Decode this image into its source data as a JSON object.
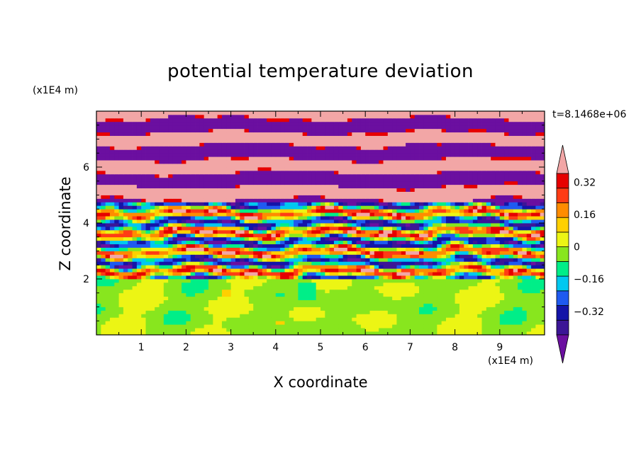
{
  "chart_data": {
    "type": "heatmap",
    "title": "potential temperature deviation",
    "xlabel": "X coordinate",
    "ylabel": "Z coordinate",
    "x_unit": "(x1E4 m)",
    "y_unit": "(x1E4 m)",
    "time_label": "t=8.1468e+06",
    "xlim": [
      0,
      10
    ],
    "ylim": [
      0,
      8
    ],
    "x_ticks": [
      "1",
      "2",
      "3",
      "4",
      "5",
      "6",
      "7",
      "8",
      "9"
    ],
    "y_ticks": [
      "2",
      "4",
      "6"
    ],
    "colorbar": {
      "levels": [
        -0.48,
        -0.4,
        -0.32,
        -0.24,
        -0.16,
        -0.08,
        0,
        0.08,
        0.16,
        0.24,
        0.32,
        0.4,
        0.48
      ],
      "tick_labels": [
        "0.32",
        "0.16",
        "0",
        "−0.16",
        "−0.32"
      ],
      "tick_values": [
        0.32,
        0.16,
        0,
        -0.16,
        -0.32
      ],
      "colors": [
        "#6b0fa0",
        "#3c1696",
        "#1414a8",
        "#1f5af0",
        "#00c8f0",
        "#00ee88",
        "#88e61e",
        "#ecf514",
        "#ffd000",
        "#ff8c00",
        "#ff3c14",
        "#e60000",
        "#f2a6a6"
      ],
      "extend": "both"
    },
    "description": "Stratified pattern: smooth green layer below z=2, turbulent multicolored mixing layer from z=2 to ~4.5, alternating purple/pink bands above."
  }
}
